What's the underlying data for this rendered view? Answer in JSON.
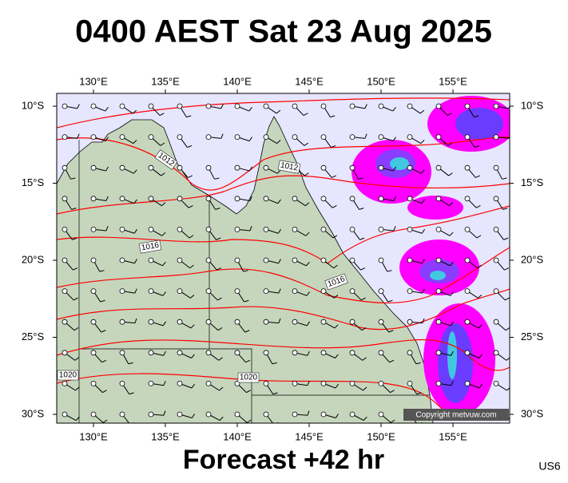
{
  "title": "0400 AEST Sat 23 Aug 2025",
  "footer": "Forecast +42 hr",
  "code": "US6",
  "copyright": "Copyright metvuw.com",
  "lon_ticks": [
    "130°E",
    "135°E",
    "140°E",
    "145°E",
    "150°E",
    "155°E"
  ],
  "lat_ticks": [
    "10°S",
    "15°S",
    "20°S",
    "25°S",
    "30°S"
  ],
  "isobar_labels": [
    "1012",
    "1012",
    "1016",
    "1016",
    "1020",
    "1020"
  ]
}
